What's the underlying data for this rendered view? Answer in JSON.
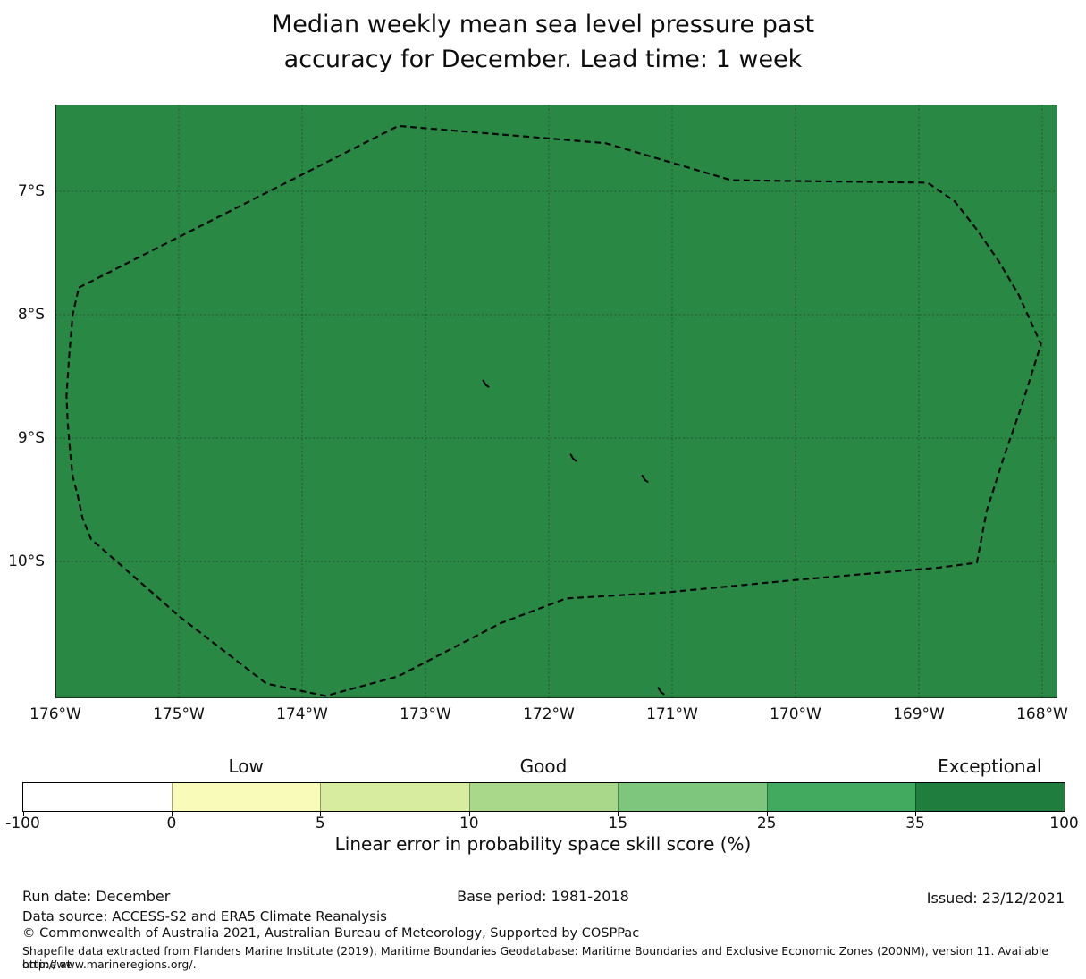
{
  "title": {
    "line1": "Median weekly mean sea level pressure past",
    "line2": "accuracy for December. Lead time: 1 week"
  },
  "colorbar": {
    "categories": [
      {
        "label": "Low",
        "segment_index": 1
      },
      {
        "label": "Good",
        "segment_index": 3
      },
      {
        "label": "Exceptional",
        "segment_index": 6
      }
    ],
    "boundary_labels": [
      "-100",
      "0",
      "5",
      "10",
      "15",
      "25",
      "35",
      "100"
    ],
    "segment_colors": [
      "#ffffff",
      "#f9fcb9",
      "#d8ec9f",
      "#a9d88a",
      "#7ec67e",
      "#42aa5e",
      "#1f7d3e"
    ],
    "caption": "Linear error in probability space skill score (%)"
  },
  "footer": {
    "run_date": "Run date: December",
    "base_period": "Base period: 1981-2018",
    "issued": "Issued: 23/12/2021",
    "data_source": "Data source: ACCESS-S2 and ERA5 Climate Reanalysis",
    "copyright": "© Commonwealth of Australia 2021, Australian Bureau of Meteorology, Supported by COSPPac",
    "shapefile_line1": "Shapefile data extracted from Flanders Marine Institute (2019), Maritime Boundaries Geodatabase: Maritime Boundaries and Exclusive Economic Zones (200NM), version 11. Available online at",
    "shapefile_line2": "http://www.marineregions.org/."
  },
  "chart_data": {
    "type": "heatmap",
    "title": "Median weekly mean sea level pressure past accuracy for December. Lead time: 1 week",
    "xlabel": "",
    "ylabel": "",
    "x_ticks": [
      {
        "label": "176°W",
        "lon_w": 176
      },
      {
        "label": "175°W",
        "lon_w": 175
      },
      {
        "label": "174°W",
        "lon_w": 174
      },
      {
        "label": "173°W",
        "lon_w": 173
      },
      {
        "label": "172°W",
        "lon_w": 172
      },
      {
        "label": "171°W",
        "lon_w": 171
      },
      {
        "label": "170°W",
        "lon_w": 170
      },
      {
        "label": "169°W",
        "lon_w": 169
      },
      {
        "label": "168°W",
        "lon_w": 168
      }
    ],
    "y_ticks": [
      {
        "label": "7°S",
        "lat_s": 7
      },
      {
        "label": "8°S",
        "lat_s": 8
      },
      {
        "label": "9°S",
        "lat_s": 9
      },
      {
        "label": "10°S",
        "lat_s": 10
      }
    ],
    "lon_w_range": [
      176.0,
      167.88
    ],
    "lat_s_range": [
      6.3,
      11.11
    ],
    "grid": true,
    "map_fill_color": "#2a8845",
    "map_fill_bin": "35-100",
    "colorbar_boundaries": [
      -100,
      0,
      5,
      10,
      15,
      25,
      35,
      100
    ],
    "colorbar_category_labels": [
      "Low",
      "Good",
      "Exceptional"
    ],
    "eez_boundary_style": "dashed",
    "eez_boundary_lonlat": [
      [
        175.81,
        7.78
      ],
      [
        173.22,
        6.47
      ],
      [
        171.54,
        6.61
      ],
      [
        170.52,
        6.91
      ],
      [
        168.93,
        6.93
      ],
      [
        168.71,
        7.08
      ],
      [
        168.53,
        7.31
      ],
      [
        168.35,
        7.57
      ],
      [
        168.19,
        7.84
      ],
      [
        168.01,
        8.24
      ],
      [
        168.17,
        8.75
      ],
      [
        168.3,
        9.12
      ],
      [
        168.45,
        9.59
      ],
      [
        168.53,
        10.01
      ],
      [
        168.84,
        10.05
      ],
      [
        170.0,
        10.15
      ],
      [
        171.04,
        10.25
      ],
      [
        171.86,
        10.3
      ],
      [
        172.39,
        10.5
      ],
      [
        173.22,
        10.93
      ],
      [
        173.81,
        11.09
      ],
      [
        174.29,
        10.99
      ],
      [
        174.99,
        10.45
      ],
      [
        175.63,
        9.89
      ],
      [
        175.71,
        9.82
      ],
      [
        175.78,
        9.65
      ],
      [
        175.82,
        9.46
      ],
      [
        175.86,
        9.31
      ],
      [
        175.88,
        9.12
      ],
      [
        175.9,
        8.88
      ],
      [
        175.91,
        8.66
      ],
      [
        175.89,
        8.35
      ],
      [
        175.86,
        8.0
      ]
    ],
    "island_marks_lonlat": [
      [
        172.51,
        8.57
      ],
      [
        171.8,
        9.17
      ],
      [
        171.22,
        9.34
      ],
      [
        171.09,
        11.06
      ]
    ]
  }
}
